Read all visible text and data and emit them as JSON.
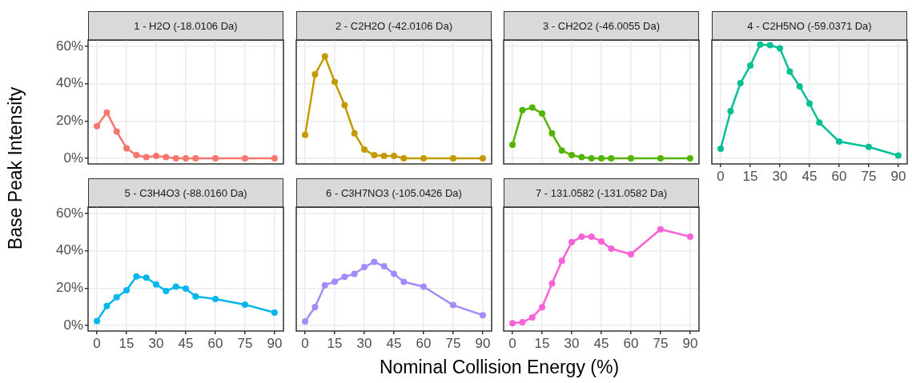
{
  "chart_data": [
    {
      "type": "line",
      "title": "1 - H2O (-18.0106 Da)",
      "ylabel": "Base Peak Intensity",
      "x": [
        0,
        5,
        10,
        15,
        20,
        25,
        30,
        35,
        40,
        45,
        50,
        60,
        75,
        90
      ],
      "series": [
        {
          "color": "#f8766d",
          "values": [
            17.3,
            24.6,
            14.4,
            5.4,
            1.7,
            0.6,
            1.3,
            0.6,
            0,
            0,
            0,
            0,
            0,
            0
          ]
        }
      ],
      "xlim": [
        -4.5,
        94.5
      ],
      "xticks": [
        0,
        15,
        30,
        45,
        60,
        75,
        90
      ],
      "ylim": [
        -3,
        63.5
      ],
      "yticks": [
        {
          "value": 0,
          "label": "0%"
        },
        {
          "value": 20,
          "label": "20%"
        },
        {
          "value": 40,
          "label": "40%"
        },
        {
          "value": 60,
          "label": "60%"
        }
      ],
      "grid": true,
      "marker": "circle",
      "tick_labels": "y"
    },
    {
      "type": "line",
      "title": "2 - C2H2O (-42.0106 Da)",
      "x": [
        0,
        5,
        10,
        15,
        20,
        25,
        30,
        35,
        40,
        45,
        50,
        60,
        75,
        90
      ],
      "series": [
        {
          "color": "#c49a00",
          "values": [
            12.5,
            45,
            54.7,
            41,
            28.5,
            13.4,
            4.7,
            1.7,
            1.3,
            1.3,
            0,
            0,
            0,
            0
          ]
        }
      ],
      "xlim": [
        -4.5,
        94.5
      ],
      "xticks": [
        0,
        15,
        30,
        45,
        60,
        75,
        90
      ],
      "ylim": [
        -3,
        63.5
      ],
      "yticks": [
        0,
        20,
        40,
        60
      ],
      "grid": true,
      "marker": "circle",
      "tick_labels": false
    },
    {
      "type": "line",
      "title": "3 - CH2O2 (-46.0055 Da)",
      "x": [
        0,
        5,
        10,
        15,
        20,
        25,
        30,
        35,
        40,
        45,
        50,
        60,
        75,
        90
      ],
      "series": [
        {
          "color": "#53b400",
          "values": [
            7.3,
            25.8,
            27.2,
            24,
            13.4,
            4.2,
            1.7,
            0.6,
            0,
            0,
            0,
            0,
            0,
            0
          ]
        }
      ],
      "xlim": [
        -4.5,
        94.5
      ],
      "xticks": [
        0,
        15,
        30,
        45,
        60,
        75,
        90
      ],
      "ylim": [
        -3,
        63.5
      ],
      "yticks": [
        0,
        20,
        40,
        60
      ],
      "grid": true,
      "marker": "circle",
      "tick_labels": false
    },
    {
      "type": "line",
      "title": "4 - C2H5NO (-59.0371 Da)",
      "x": [
        0,
        5,
        10,
        15,
        20,
        25,
        30,
        35,
        40,
        45,
        50,
        60,
        75,
        90
      ],
      "series": [
        {
          "color": "#00c094",
          "values": [
            5.1,
            25.3,
            40.3,
            49.8,
            61,
            60.7,
            59,
            46.6,
            38.6,
            29.4,
            19.2,
            9,
            6.1,
            1.5
          ]
        }
      ],
      "xlim": [
        -4.5,
        94.5
      ],
      "xticks": [
        0,
        15,
        30,
        45,
        60,
        75,
        90
      ],
      "ylim": [
        -3,
        63.5
      ],
      "yticks": [
        0,
        20,
        40,
        60
      ],
      "grid": true,
      "marker": "circle",
      "tick_labels": "x"
    },
    {
      "type": "line",
      "title": "5 - C3H4O3 (-88.0160 Da)",
      "x": [
        0,
        5,
        10,
        15,
        20,
        25,
        30,
        35,
        40,
        45,
        50,
        60,
        75,
        90
      ],
      "series": [
        {
          "color": "#00b6eb",
          "values": [
            2.4,
            10.4,
            15.1,
            18.9,
            26.3,
            25.6,
            22,
            18.5,
            20.8,
            19.7,
            15.6,
            14.2,
            11.2,
            6.9
          ]
        }
      ],
      "xlim": [
        -4.5,
        94.5
      ],
      "xticks": [
        0,
        15,
        30,
        45,
        60,
        75,
        90
      ],
      "ylim": [
        -3,
        63.5
      ],
      "yticks": [
        {
          "value": 0,
          "label": "0%"
        },
        {
          "value": 20,
          "label": "20%"
        },
        {
          "value": 40,
          "label": "40%"
        },
        {
          "value": 60,
          "label": "60%"
        }
      ],
      "grid": true,
      "marker": "circle"
    },
    {
      "type": "line",
      "title": "6 - C3H7NO3 (-105.0426 Da)",
      "xlabel": "Nominal Collision Energy (%)",
      "x": [
        0,
        5,
        10,
        15,
        20,
        25,
        30,
        35,
        40,
        45,
        50,
        60,
        75,
        90
      ],
      "series": [
        {
          "color": "#a58aff",
          "values": [
            2.2,
            9.9,
            21.6,
            23.5,
            26.1,
            27.7,
            31.3,
            34.1,
            31.7,
            27.7,
            23.4,
            20.8,
            10.9,
            5.5
          ]
        }
      ],
      "xlim": [
        -4.5,
        94.5
      ],
      "xticks": [
        0,
        15,
        30,
        45,
        60,
        75,
        90
      ],
      "ylim": [
        -3,
        63.5
      ],
      "yticks": [
        0,
        20,
        40,
        60
      ],
      "grid": true,
      "marker": "circle",
      "tick_labels": "x"
    },
    {
      "type": "line",
      "title": "7 - 131.0582 (-131.0582 Da)",
      "x": [
        0,
        5,
        10,
        15,
        20,
        25,
        30,
        35,
        40,
        45,
        50,
        60,
        75,
        90
      ],
      "series": [
        {
          "color": "#fb61d7",
          "values": [
            1.2,
            1.7,
            4.3,
            9.8,
            22.5,
            34.6,
            44.7,
            47.6,
            47.6,
            45.1,
            41.2,
            38.2,
            51.6,
            47.6
          ]
        }
      ],
      "xlim": [
        -4.5,
        94.5
      ],
      "xticks": [
        0,
        15,
        30,
        45,
        60,
        75,
        90
      ],
      "ylim": [
        -3,
        63.5
      ],
      "yticks": [
        0,
        20,
        40,
        60
      ],
      "grid": true,
      "marker": "circle",
      "tick_labels": "x"
    }
  ]
}
